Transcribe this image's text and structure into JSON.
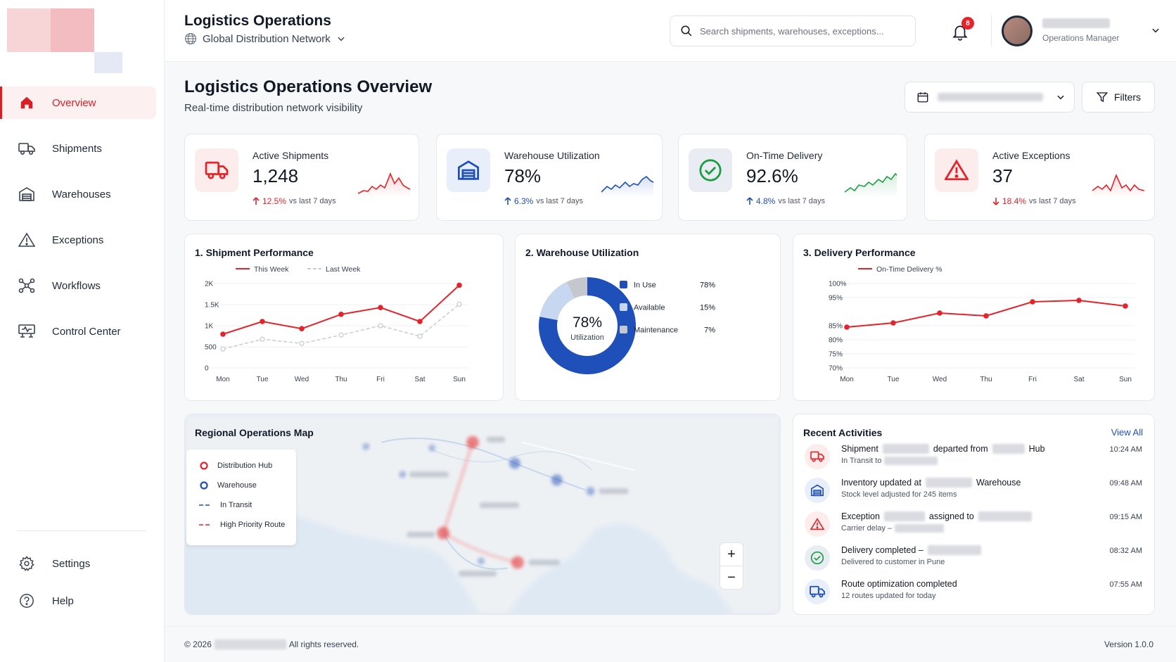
{
  "sidebar": {
    "items": [
      {
        "label": "Overview",
        "icon": "home-icon",
        "active": true
      },
      {
        "label": "Shipments",
        "icon": "truck-icon"
      },
      {
        "label": "Warehouses",
        "icon": "warehouse-icon"
      },
      {
        "label": "Exceptions",
        "icon": "warning-icon"
      },
      {
        "label": "Workflows",
        "icon": "workflow-icon"
      },
      {
        "label": "Control Center",
        "icon": "monitor-icon"
      }
    ],
    "bottom_items": [
      {
        "label": "Settings",
        "icon": "gear-icon"
      },
      {
        "label": "Help",
        "icon": "help-icon"
      }
    ]
  },
  "header": {
    "title": "Logistics Operations",
    "network": "Global Distribution Network",
    "search_placeholder": "Search shipments, warehouses, exceptions...",
    "notification_count": "8",
    "user_role": "Operations Manager"
  },
  "page": {
    "title": "Logistics Operations Overview",
    "subtitle": "Real-time distribution network visibility",
    "filters_label": "Filters"
  },
  "kpis": [
    {
      "label": "Active Shipments",
      "value": "1,248",
      "delta": "12.5%",
      "direction": "up",
      "vs": "vs last 7 days",
      "color": "#e3242b"
    },
    {
      "label": "Warehouse Utilization",
      "value": "78%",
      "delta": "6.3%",
      "direction": "up",
      "vs": "vs last 7 days",
      "color": "#1f4fb8"
    },
    {
      "label": "On-Time Delivery",
      "value": "92.6%",
      "delta": "4.8%",
      "direction": "up",
      "vs": "vs last 7 days",
      "color": "#1f9d45"
    },
    {
      "label": "Active Exceptions",
      "value": "37",
      "delta": "18.4%",
      "direction": "down",
      "vs": "vs last 7 days",
      "color": "#e3242b"
    }
  ],
  "chart_data": [
    {
      "type": "line",
      "title": "1. Shipment Performance",
      "categories": [
        "Mon",
        "Tue",
        "Wed",
        "Thu",
        "Fri",
        "Sat",
        "Sun"
      ],
      "series": [
        {
          "name": "This Week",
          "values": [
            800,
            1100,
            930,
            1270,
            1430,
            1100,
            1960
          ],
          "color": "#e3242b",
          "dashed": false
        },
        {
          "name": "Last Week",
          "values": [
            450,
            680,
            580,
            780,
            1000,
            750,
            1510
          ],
          "color": "#c9ccd3",
          "dashed": true
        }
      ],
      "yticks": [
        "0",
        "500",
        "1K",
        "1.5K",
        "2K"
      ],
      "ylim": [
        0,
        2000
      ]
    },
    {
      "type": "pie",
      "title": "2. Warehouse Utilization",
      "center_value": "78%",
      "center_label": "Utilization",
      "slices": [
        {
          "label": "In Use",
          "value": 78,
          "display": "78%",
          "color": "#1f4fb8"
        },
        {
          "label": "Available",
          "value": 15,
          "display": "15%",
          "color": "#c7d7f0"
        },
        {
          "label": "Maintenance",
          "value": 7,
          "display": "7%",
          "color": "#c4c7ce"
        }
      ]
    },
    {
      "type": "line",
      "title": "3. Delivery Performance",
      "categories": [
        "Mon",
        "Tue",
        "Wed",
        "Thu",
        "Fri",
        "Sat",
        "Sun"
      ],
      "series": [
        {
          "name": "On-Time Delivery %",
          "values": [
            84.5,
            86,
            89.5,
            88.5,
            93.5,
            94,
            92
          ],
          "color": "#e3242b",
          "dashed": false
        }
      ],
      "yticks": [
        "70%",
        "75%",
        "80%",
        "85%",
        "95%",
        "100%"
      ],
      "ylim": [
        70,
        100
      ]
    }
  ],
  "map": {
    "title": "Regional Operations Map",
    "legend": [
      {
        "label": "Distribution Hub",
        "kind": "hub"
      },
      {
        "label": "Warehouse",
        "kind": "warehouse"
      },
      {
        "label": "In Transit",
        "kind": "transit"
      },
      {
        "label": "High Priority Route",
        "kind": "priority"
      }
    ],
    "zoom_in": "+",
    "zoom_out": "−"
  },
  "activities": {
    "title": "Recent Activities",
    "view_all": "View All",
    "items": [
      {
        "icon": "truck-icon",
        "tone": "red",
        "main_a": "Shipment",
        "main_b": "departed from",
        "main_c": "Hub",
        "sub": "In Transit to",
        "time": "10:24 AM"
      },
      {
        "icon": "warehouse-icon",
        "tone": "blue",
        "main_a": "Inventory updated at",
        "main_b": "Warehouse",
        "main_c": "",
        "sub": "Stock level adjusted for 245 items",
        "time": "09:48 AM"
      },
      {
        "icon": "warning-icon",
        "tone": "red",
        "main_a": "Exception",
        "main_b": "assigned to",
        "main_c": "",
        "sub": "Carrier delay –",
        "time": "09:15 AM"
      },
      {
        "icon": "check-circle-icon",
        "tone": "green",
        "main_a": "Delivery completed –",
        "main_b": "",
        "main_c": "",
        "sub": "Delivered to customer in Pune",
        "time": "08:32 AM"
      },
      {
        "icon": "route-icon",
        "tone": "blue",
        "main_a": "Route optimization completed",
        "main_b": "",
        "main_c": "",
        "sub": "12 routes updated for today",
        "time": "07:55 AM"
      }
    ]
  },
  "footer": {
    "copyright": "© 2026",
    "rights": "All rights reserved.",
    "version": "Version 1.0.0"
  }
}
